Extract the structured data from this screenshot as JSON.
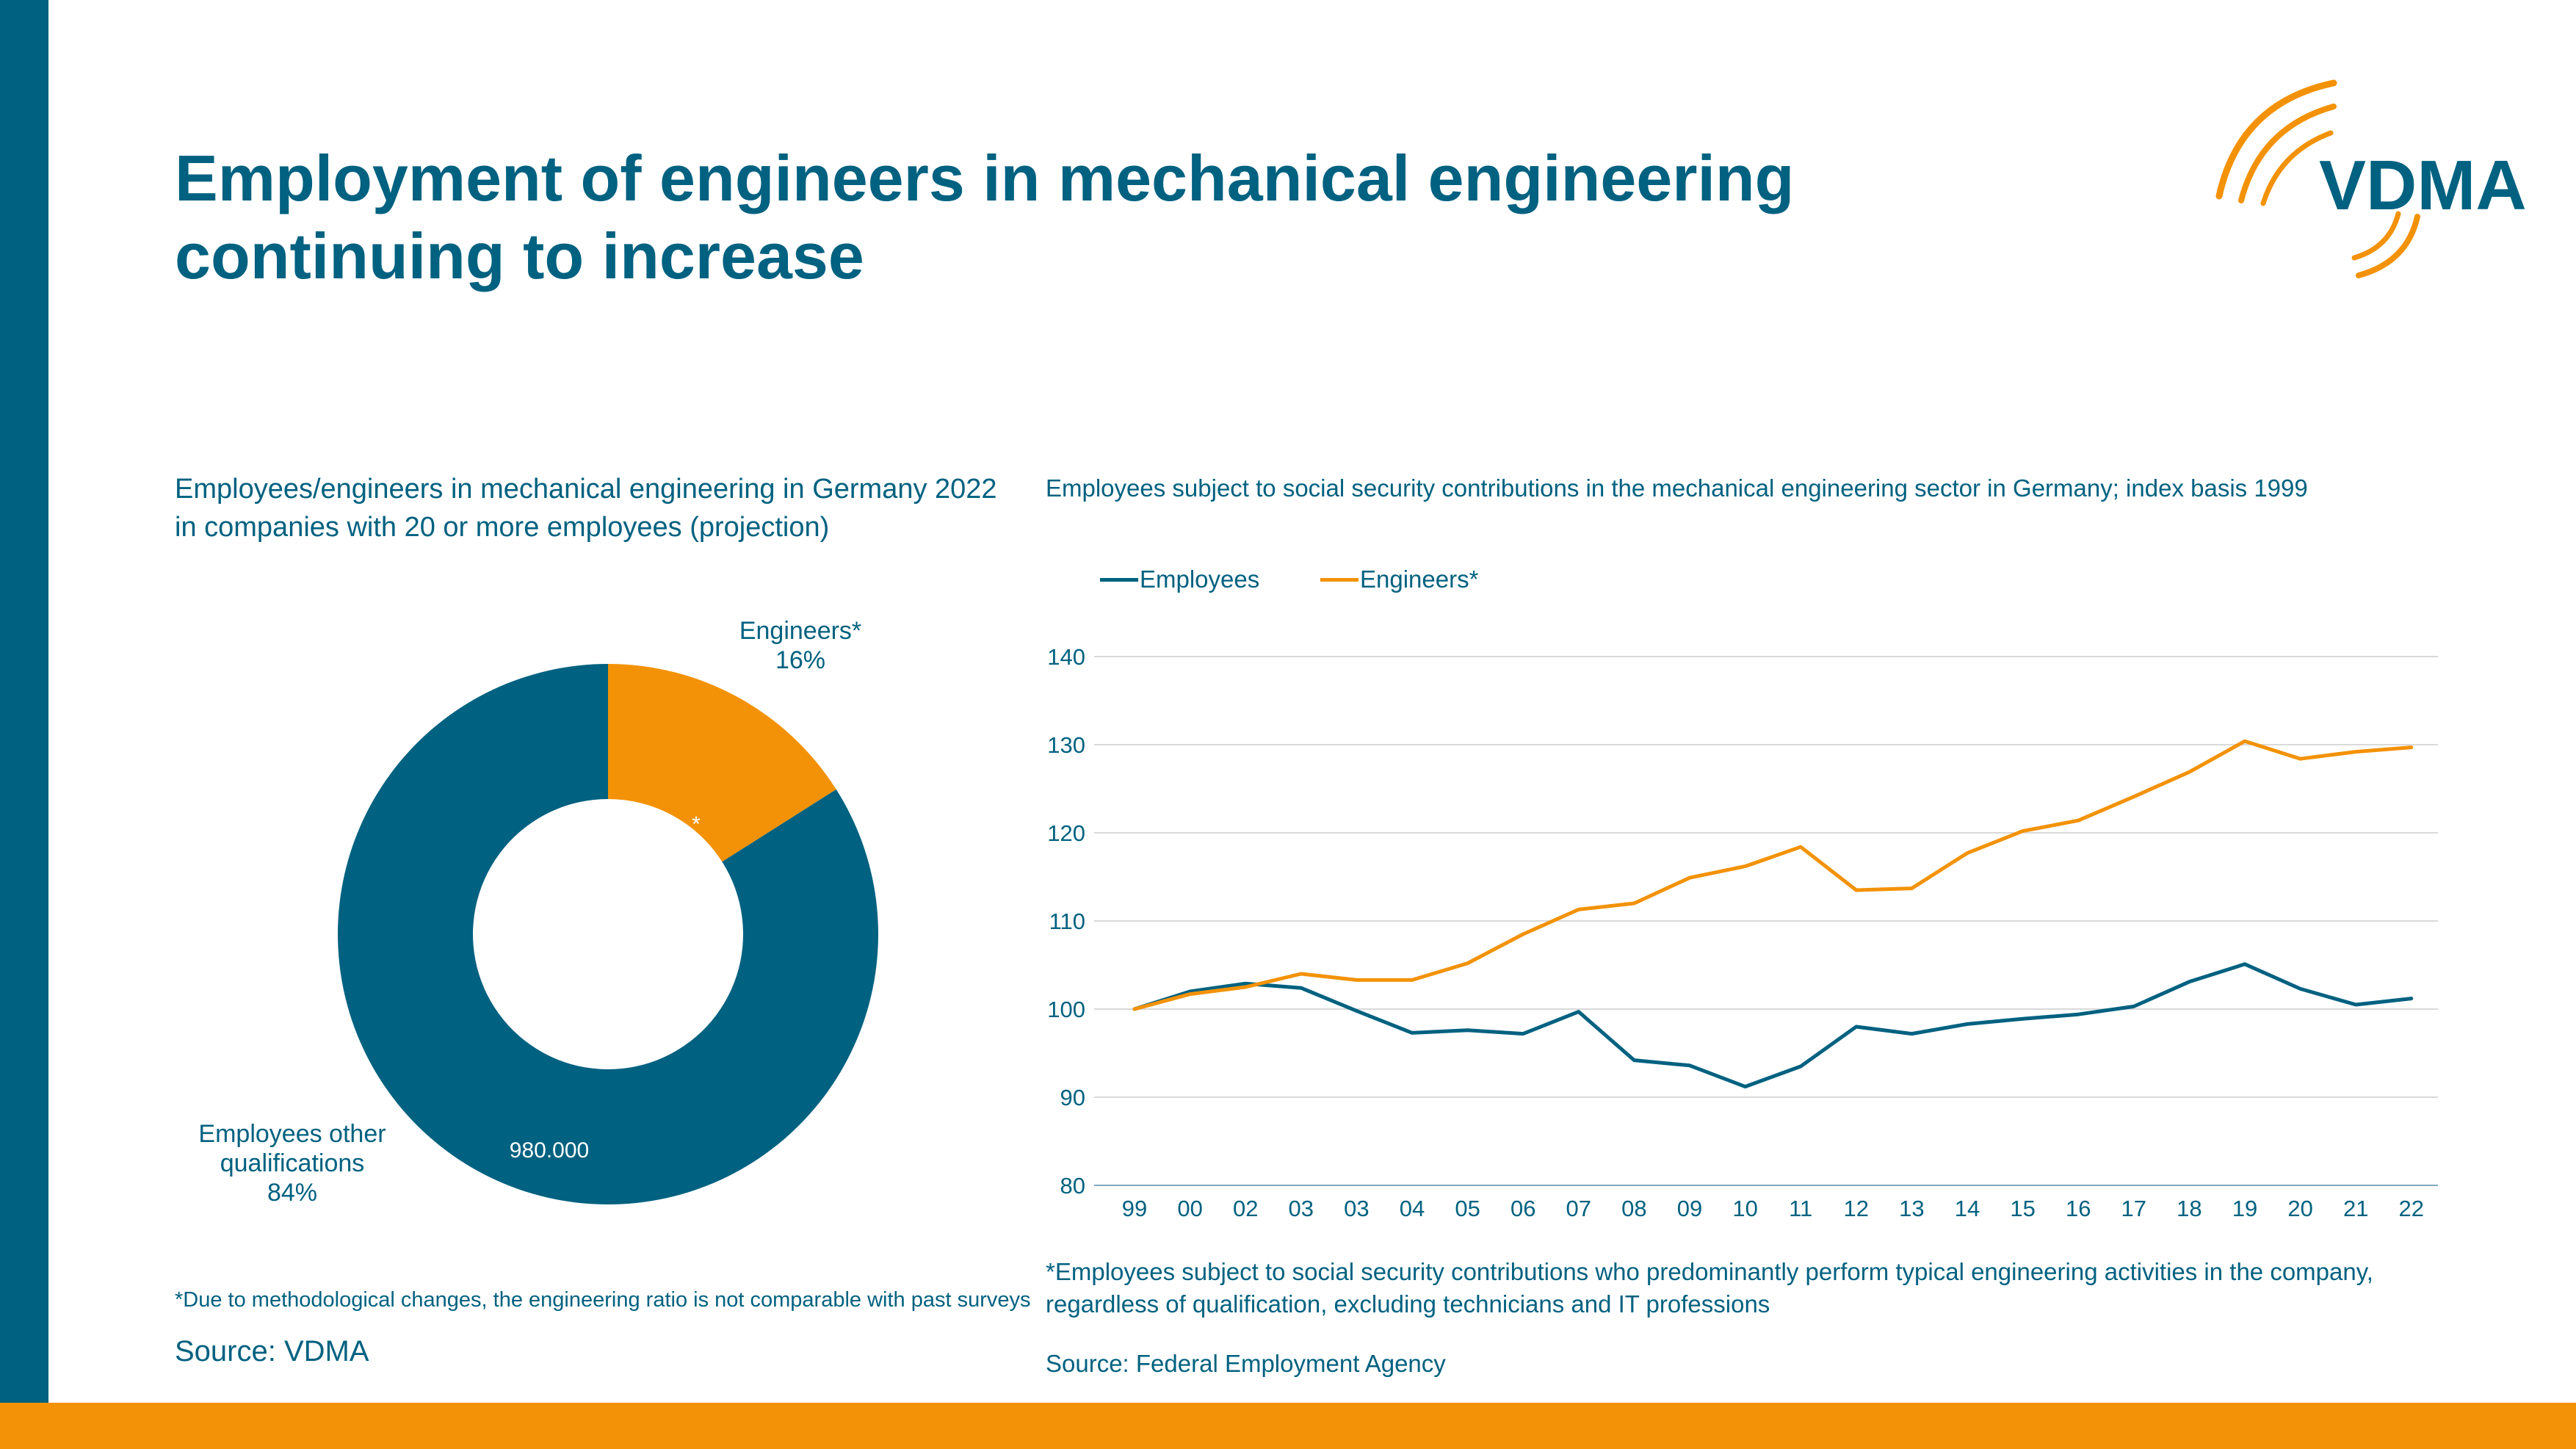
{
  "colors": {
    "teal": "#006180",
    "orange": "#f39207",
    "grid": "#d9d9d9"
  },
  "logo": {
    "text": "VDMA"
  },
  "title": {
    "line1": "Employment of engineers in mechanical engineering",
    "line2": "continuing to increase"
  },
  "pie": {
    "heading_line1": "Employees/engineers in mechanical engineering in Germany 2022",
    "heading_line2": "in companies with 20 or more employees (projection)",
    "note": "*Due to methodological changes, the engineering ratio is not comparable with past surveys",
    "source": "Source: VDMA"
  },
  "line": {
    "heading": "Employees subject to social security contributions in the mechanical engineering sector in Germany; index basis 1999",
    "note_line1": "*Employees subject to social security contributions who predominantly perform typical engineering activities in the company,",
    "note_line2": "regardless of qualification, excluding technicians and IT professions",
    "source": "Source: Federal Employment Agency"
  },
  "chart_data": [
    {
      "type": "pie",
      "variant": "donut",
      "title": "Employees/engineers in mechanical engineering in Germany 2022 in companies with 20 or more employees (projection)",
      "slices": [
        {
          "label_line1": "Engineers*",
          "label_line2": "",
          "percent_label": "16%",
          "value": 16,
          "inner_label": "*",
          "color": "#f39207"
        },
        {
          "label_line1": "Employees other",
          "label_line2": "qualifications",
          "percent_label": "84%",
          "value": 84,
          "inner_label": "980.000",
          "color": "#006180"
        }
      ]
    },
    {
      "type": "line",
      "title": "Employees subject to social security contributions in the mechanical engineering sector in Germany; index basis 1999",
      "categories": [
        "99",
        "00",
        "02",
        "03",
        "03",
        "04",
        "05",
        "06",
        "07",
        "08",
        "09",
        "10",
        "11",
        "12",
        "13",
        "14",
        "15",
        "16",
        "17",
        "18",
        "19",
        "20",
        "21",
        "22"
      ],
      "ylim": [
        80,
        140
      ],
      "yticks": [
        80,
        90,
        100,
        110,
        120,
        130,
        140
      ],
      "legend_position": "top-left",
      "series": [
        {
          "name": "Employees",
          "color": "#006180",
          "values": [
            100,
            102,
            102.9,
            102.4,
            99.8,
            97.3,
            97.6,
            97.2,
            99.7,
            94.2,
            93.6,
            91.2,
            93.5,
            98.0,
            97.2,
            98.3,
            98.9,
            99.4,
            100.3,
            103.1,
            105.1,
            102.3,
            100.5,
            101.2
          ]
        },
        {
          "name": "Engineers*",
          "color": "#f39207",
          "values": [
            100,
            101.7,
            102.5,
            104.0,
            103.3,
            103.3,
            105.2,
            108.5,
            111.3,
            112.0,
            114.9,
            116.2,
            118.4,
            113.5,
            113.7,
            117.7,
            120.2,
            121.4,
            124.1,
            126.9,
            130.4,
            128.4,
            129.2,
            129.7
          ]
        }
      ]
    }
  ]
}
